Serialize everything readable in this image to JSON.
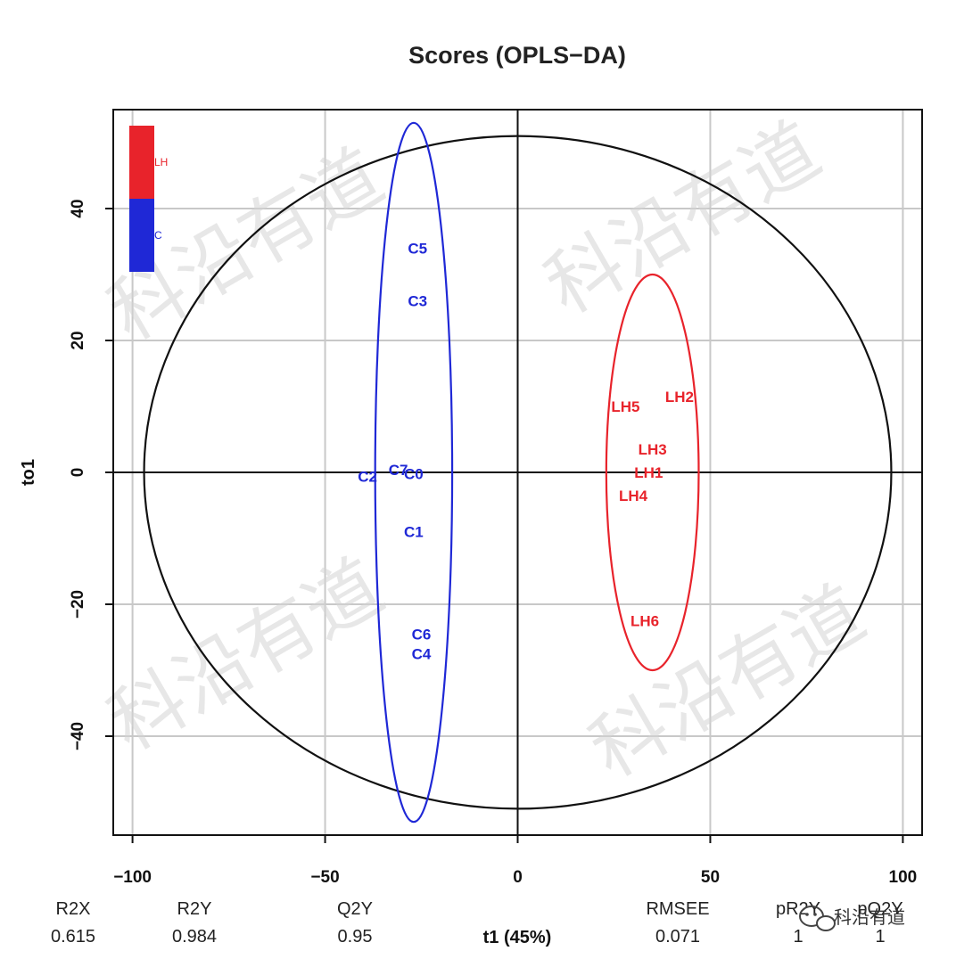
{
  "chart_data": {
    "type": "scatter",
    "title": "Scores (OPLS−DA)",
    "xlabel": "t1 (45%)",
    "ylabel": "to1",
    "xlim": [
      -105,
      105
    ],
    "ylim": [
      -55,
      55
    ],
    "xticks": [
      -100,
      -50,
      0,
      50,
      100
    ],
    "yticks": [
      -40,
      -20,
      0,
      20,
      40
    ],
    "xtick_labels": [
      "−100",
      "−50",
      "0",
      "50",
      "100"
    ],
    "ytick_labels": [
      "−40",
      "−20",
      "0",
      "20",
      "40"
    ],
    "grid": true,
    "legend_position": "top-left",
    "groups": [
      {
        "name": "LH",
        "color": "#e8232b",
        "ellipse": {
          "cx": 35,
          "cy": 0,
          "rx": 12,
          "ry": 30
        },
        "points": [
          {
            "label": "LH1",
            "x": 34,
            "y": 0
          },
          {
            "label": "LH2",
            "x": 42,
            "y": 11.5
          },
          {
            "label": "LH3",
            "x": 35,
            "y": 3.5
          },
          {
            "label": "LH4",
            "x": 30,
            "y": -3.5
          },
          {
            "label": "LH5",
            "x": 28,
            "y": 10
          },
          {
            "label": "LH6",
            "x": 33,
            "y": -22.5
          }
        ]
      },
      {
        "name": "C",
        "color": "#1f28d6",
        "ellipse": {
          "cx": -27,
          "cy": 0,
          "rx": 10,
          "ry": 53
        },
        "points": [
          {
            "label": "C0",
            "x": -27,
            "y": -0.2
          },
          {
            "label": "C1",
            "x": -27,
            "y": -9
          },
          {
            "label": "C2",
            "x": -39,
            "y": -0.6
          },
          {
            "label": "C3",
            "x": -26,
            "y": 26
          },
          {
            "label": "C4",
            "x": -25,
            "y": -27.5
          },
          {
            "label": "C5",
            "x": -26,
            "y": 34
          },
          {
            "label": "C6",
            "x": -25,
            "y": -24.5
          },
          {
            "label": "C7",
            "x": -31,
            "y": 0.4
          }
        ]
      }
    ],
    "confidence_ellipse": {
      "cx": 0,
      "cy": 0,
      "rx": 97,
      "ry": 51,
      "color": "#111111"
    }
  },
  "stats": [
    {
      "label": "R2X",
      "value": "0.615"
    },
    {
      "label": "R2Y",
      "value": "0.984"
    },
    {
      "label": "Q2Y",
      "value": "0.95"
    },
    {
      "label": "RMSEE",
      "value": "0.071"
    },
    {
      "label": "pR2Y",
      "value": "1"
    },
    {
      "label": "pQ2Y",
      "value": "1"
    }
  ],
  "watermark": {
    "text": "科沿有道"
  },
  "brand": {
    "text": "科沿有道"
  }
}
